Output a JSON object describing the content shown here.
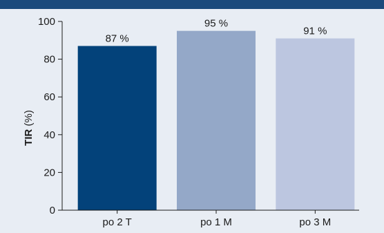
{
  "chart_data": {
    "type": "bar",
    "categories": [
      "po 2 T",
      "po 1 M",
      "po 3 M"
    ],
    "values": [
      87,
      95,
      91
    ],
    "data_labels": [
      "87 %",
      "95 %",
      "91 %"
    ],
    "colors": [
      "#03427a",
      "#94a8c8",
      "#bcc6e0"
    ],
    "ylabel_bold": "TIR",
    "ylabel_unit": " (%)",
    "ylim": [
      0,
      100
    ],
    "yticks": [
      0,
      20,
      40,
      60,
      80,
      100
    ],
    "grid": false,
    "legend": "none"
  },
  "header_color": "#1b4a7c",
  "background_color": "#e8edf4"
}
